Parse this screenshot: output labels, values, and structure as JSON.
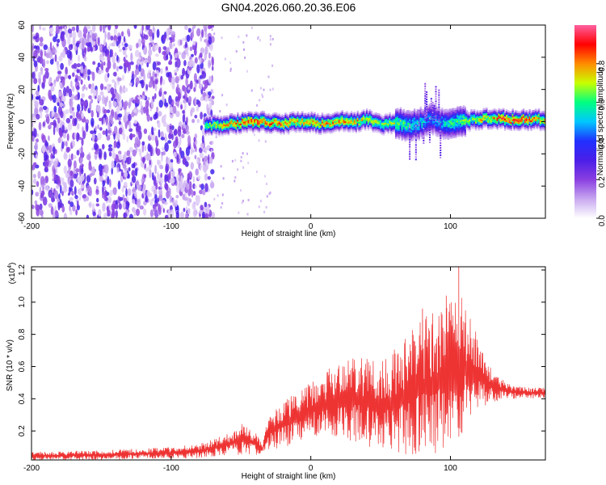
{
  "figure": {
    "title": "GN04.2026.060.20.36.E06"
  },
  "chart_data": [
    {
      "type": "heatmap",
      "xlabel": "Height of straight line (km)",
      "ylabel": "Frequency (Hz)",
      "xlim": [
        -200,
        168
      ],
      "ylim": [
        -60,
        60
      ],
      "xticks": [
        {
          "value": -200,
          "label": "-200"
        },
        {
          "value": -100,
          "label": "-100"
        },
        {
          "value": 0,
          "label": "0"
        },
        {
          "value": 100,
          "label": "100"
        }
      ],
      "yticks": [
        {
          "value": 60,
          "label": "60"
        },
        {
          "value": 40,
          "label": "40"
        },
        {
          "value": 20,
          "label": "20"
        },
        {
          "value": 0,
          "label": "0"
        },
        {
          "value": -20,
          "label": "-20"
        },
        {
          "value": -40,
          "label": "-40"
        },
        {
          "value": -60,
          "label": "-60"
        }
      ],
      "colorbar": {
        "label": "Normalized spectral amplitude",
        "range": [
          0,
          1
        ],
        "ticks": [
          {
            "value": 0.0,
            "label": "0.0"
          },
          {
            "value": 0.2,
            "label": "0.2"
          },
          {
            "value": 0.4,
            "label": "0.4"
          },
          {
            "value": 0.6,
            "label": "0.6"
          },
          {
            "value": 0.8,
            "label": "0.8"
          }
        ],
        "colormap": [
          "#ffffff",
          "#c8a8f0",
          "#8a3fe0",
          "#4b1ee8",
          "#2030ff",
          "#00c8ff",
          "#00ff80",
          "#c8ff00",
          "#ff8c00",
          "#ff0000",
          "#ff60a0"
        ]
      },
      "noise_region_x": [
        -200,
        -72
      ],
      "ridge": {
        "x": [
          -72,
          -60,
          -50,
          -40,
          -30,
          -20,
          -10,
          0,
          10,
          20,
          30,
          40,
          50,
          60,
          70,
          80,
          85,
          90,
          95,
          100,
          110,
          120,
          130,
          140,
          150,
          160,
          168
        ],
        "freq": [
          -2,
          -1,
          0,
          1,
          0,
          -1,
          1,
          0,
          -1,
          1,
          0,
          2,
          -1,
          0,
          -2,
          0,
          3,
          1,
          -1,
          0,
          1,
          2,
          3,
          2,
          2,
          2,
          2
        ],
        "peak": [
          0.7,
          0.8,
          0.9,
          0.9,
          0.85,
          0.85,
          0.8,
          0.85,
          0.8,
          0.85,
          0.8,
          0.75,
          0.7,
          0.7,
          0.6,
          0.55,
          0.5,
          0.5,
          0.55,
          0.6,
          0.65,
          0.75,
          0.85,
          0.9,
          0.9,
          0.85,
          0.8
        ]
      }
    },
    {
      "type": "line",
      "xlabel": "Height of straight line (km)",
      "ylabel": "SNR (10 * v/v)",
      "yscale_label": "(x10",
      "yscale_exp": "4",
      "yscale_close": ")",
      "xlim": [
        -200,
        168
      ],
      "ylim": [
        0.02,
        1.22
      ],
      "xticks": [
        {
          "value": -200,
          "label": "-200"
        },
        {
          "value": -100,
          "label": "-100"
        },
        {
          "value": 0,
          "label": "0"
        },
        {
          "value": 100,
          "label": "100"
        }
      ],
      "yticks": [
        {
          "value": 0.2,
          "label": "0.2"
        },
        {
          "value": 0.4,
          "label": "0.4"
        },
        {
          "value": 0.6,
          "label": "0.6"
        },
        {
          "value": 0.8,
          "label": "0.8"
        },
        {
          "value": 1.0,
          "label": "1.0"
        },
        {
          "value": 1.2,
          "label": "1.2"
        }
      ],
      "series_color": "#ee3333",
      "envelope": {
        "x": [
          -200,
          -150,
          -100,
          -80,
          -70,
          -60,
          -50,
          -40,
          -35,
          -30,
          -20,
          -10,
          0,
          10,
          20,
          30,
          40,
          50,
          60,
          70,
          80,
          90,
          100,
          105,
          110,
          120,
          130,
          140,
          150,
          160,
          168
        ],
        "low": [
          0.02,
          0.02,
          0.03,
          0.03,
          0.04,
          0.05,
          0.05,
          0.05,
          0.06,
          0.08,
          0.1,
          0.12,
          0.15,
          0.15,
          0.15,
          0.12,
          0.1,
          0.08,
          0.06,
          0.05,
          0.05,
          0.05,
          0.1,
          0.15,
          0.2,
          0.3,
          0.38,
          0.4,
          0.4,
          0.4,
          0.4
        ],
        "high": [
          0.07,
          0.08,
          0.1,
          0.12,
          0.15,
          0.18,
          0.25,
          0.2,
          0.12,
          0.3,
          0.38,
          0.45,
          0.52,
          0.58,
          0.62,
          0.68,
          0.65,
          0.62,
          0.72,
          0.82,
          0.9,
          0.95,
          1.0,
          1.08,
          1.0,
          0.78,
          0.58,
          0.5,
          0.48,
          0.47,
          0.47
        ]
      },
      "peaks": [
        {
          "x": 80,
          "y": 0.96
        },
        {
          "x": 97,
          "y": 1.04
        },
        {
          "x": 106,
          "y": 1.22
        }
      ]
    }
  ]
}
